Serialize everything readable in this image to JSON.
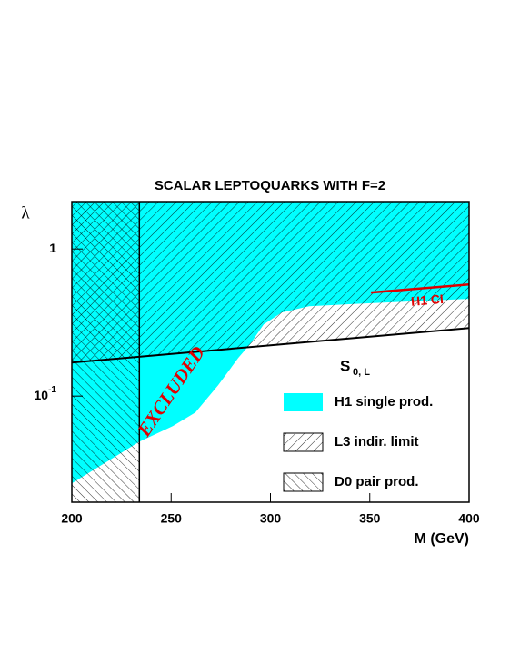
{
  "chart_data": {
    "type": "exclusion",
    "title": "SCALAR LEPTOQUARKS WITH F=2",
    "x_label": "M (GeV)",
    "y_label": "λ",
    "xlim": [
      200,
      400
    ],
    "xticks": [
      200,
      250,
      300,
      350,
      400
    ],
    "ylim": [
      0.019,
      2.1
    ],
    "yticks": [
      {
        "value": 0.1,
        "label": "10^-1"
      },
      1
    ],
    "log_y": true,
    "model_label": "S",
    "model_subscript": "0, L",
    "annotation": "EXCLUDED",
    "series": [
      {
        "name": "H1 single prod.",
        "kind": "fill-above",
        "color": "#00ffff",
        "x": [
          200,
          234,
          250.8,
          262.2,
          273.7,
          283.8,
          289.7,
          296.6,
          305.7,
          319.5,
          346.9,
          400
        ],
        "values": [
          0.0255,
          0.049,
          0.0625,
          0.0774,
          0.1186,
          0.1817,
          0.225,
          0.307,
          0.37,
          0.408,
          0.426,
          0.458
        ]
      },
      {
        "name": "L3 indir. limit",
        "kind": "hatch-above",
        "hatch": "/",
        "color": "#000000",
        "x": [
          200,
          400
        ],
        "values": [
          0.169,
          0.29
        ]
      },
      {
        "name": "D0 pair prod.",
        "kind": "hatch-left",
        "hatch": "\\",
        "color": "#000000",
        "x_limit": 234
      },
      {
        "name": "H1 CI",
        "kind": "line",
        "color": "#e00000",
        "legend": false,
        "x": [
          350.6,
          400
        ],
        "values": [
          0.506,
          0.574
        ]
      }
    ]
  }
}
